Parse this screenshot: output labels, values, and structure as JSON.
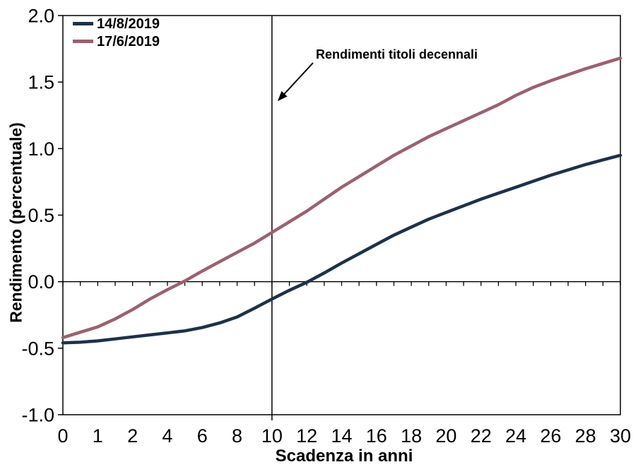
{
  "chart_data": {
    "type": "line",
    "title": "",
    "xlabel": "Scadenza in anni",
    "ylabel": "Rendimento (percentuale)",
    "ylim": [
      -1.0,
      2.0
    ],
    "grid": false,
    "legend_position": "top-left-inside",
    "axis_color": "#000000",
    "y_ticks": [
      {
        "value": 2.0,
        "label": "2.0"
      },
      {
        "value": 1.5,
        "label": "1.5"
      },
      {
        "value": 1.0,
        "label": "1.0"
      },
      {
        "value": 0.5,
        "label": "0.5"
      },
      {
        "value": 0.0,
        "label": "0.0"
      },
      {
        "value": -0.5,
        "label": "-0.5"
      },
      {
        "value": -1.0,
        "label": "-1.0"
      }
    ],
    "x_categories": [
      0,
      0.5,
      1,
      1.5,
      2,
      3,
      4,
      5,
      6,
      7,
      8,
      9,
      10,
      11,
      12,
      13,
      14,
      15,
      16,
      17,
      18,
      19,
      20,
      21,
      22,
      23,
      24,
      25,
      26,
      27,
      28,
      29,
      30
    ],
    "x_tick_labels": [
      "0",
      "1",
      "2",
      "4",
      "6",
      "8",
      "10",
      "12",
      "14",
      "16",
      "18",
      "20",
      "22",
      "24",
      "26",
      "28",
      "30"
    ],
    "series": [
      {
        "name": "14/8/2019",
        "color": "#1c324a",
        "values": [
          -0.46,
          -0.455,
          -0.445,
          -0.43,
          -0.415,
          -0.4,
          -0.385,
          -0.37,
          -0.345,
          -0.31,
          -0.265,
          -0.2,
          -0.13,
          -0.065,
          -0.005,
          0.065,
          0.14,
          0.21,
          0.28,
          0.35,
          0.41,
          0.47,
          0.52,
          0.57,
          0.62,
          0.665,
          0.71,
          0.755,
          0.8,
          0.84,
          0.88,
          0.915,
          0.95
        ]
      },
      {
        "name": "17/6/2019",
        "color": "#9b616e",
        "values": [
          -0.42,
          -0.38,
          -0.34,
          -0.28,
          -0.21,
          -0.13,
          -0.06,
          0.005,
          0.08,
          0.15,
          0.22,
          0.29,
          0.37,
          0.45,
          0.53,
          0.62,
          0.71,
          0.79,
          0.87,
          0.95,
          1.02,
          1.09,
          1.15,
          1.21,
          1.27,
          1.33,
          1.4,
          1.46,
          1.51,
          1.555,
          1.6,
          1.64,
          1.68
        ]
      }
    ],
    "annotation": {
      "text": "Rendimenti titoli decennali",
      "vline_x": 10
    }
  }
}
